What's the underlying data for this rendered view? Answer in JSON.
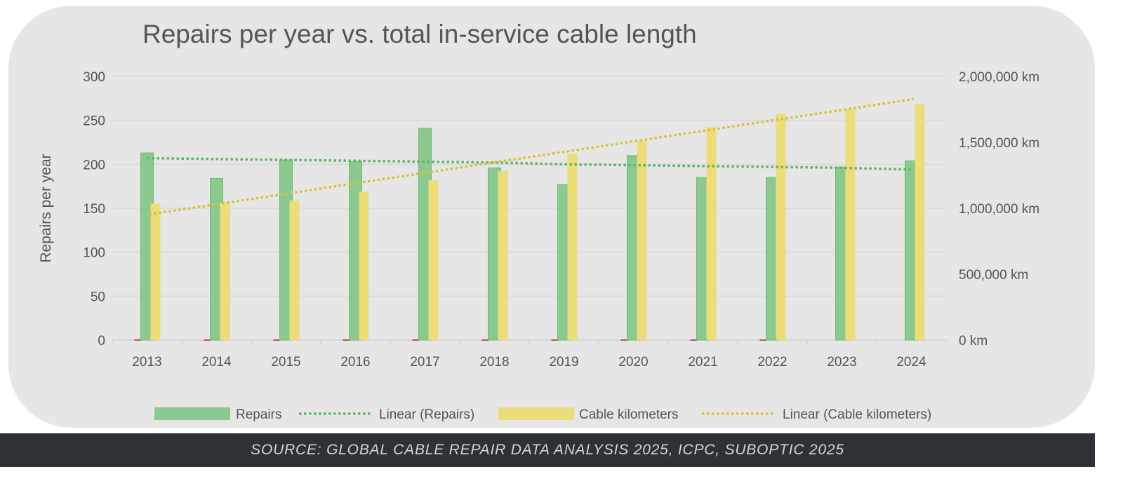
{
  "caption": "SOURCE: GLOBAL CABLE REPAIR DATA ANALYSIS 2025, ICPC, SUBOPTIC 2025",
  "colors": {
    "repairs": "#8cc98f",
    "cable": "#ecdc7a",
    "repairs_trend": "#5cb865",
    "cable_trend": "#d8c23a",
    "marker": "#c0505a"
  },
  "chart_data": {
    "type": "bar",
    "title": "Repairs per year vs. total in-service cable length",
    "ylabel": "Repairs per year",
    "xlabel": "",
    "categories": [
      "2013",
      "2014",
      "2015",
      "2016",
      "2017",
      "2018",
      "2019",
      "2020",
      "2021",
      "2022",
      "2023",
      "2024"
    ],
    "ylim": [
      0,
      300
    ],
    "y_ticks": [
      "0",
      "50",
      "100",
      "150",
      "200",
      "250",
      "300"
    ],
    "y2lim": [
      0,
      2000000
    ],
    "y2_ticks": [
      "0 km",
      "500,000 km",
      "1,000,000 km",
      "1,500,000 km",
      "2,000,000 km"
    ],
    "grid": true,
    "legend_position": "bottom",
    "series": [
      {
        "name": "Repairs",
        "axis": "left",
        "type": "bar",
        "values": [
          213,
          184,
          205,
          203,
          241,
          196,
          177,
          210,
          185,
          185,
          197,
          204
        ]
      },
      {
        "name": "Linear (Repairs)",
        "axis": "left",
        "type": "trendline",
        "values": [
          207,
          206,
          205,
          204,
          203,
          202,
          200,
          199,
          198,
          197,
          196,
          194
        ]
      },
      {
        "name": "Cable kilometers",
        "axis": "right",
        "type": "bar",
        "values": [
          1035000,
          1043000,
          1059000,
          1125000,
          1212000,
          1281000,
          1411000,
          1510000,
          1615000,
          1715000,
          1753000,
          1788000
        ]
      },
      {
        "name": "Linear (Cable kilometers)",
        "axis": "right",
        "type": "trendline",
        "values": [
          953000,
          1033000,
          1112000,
          1192000,
          1271000,
          1351000,
          1430000,
          1510000,
          1589000,
          1669000,
          1748000,
          1828000
        ]
      }
    ]
  }
}
